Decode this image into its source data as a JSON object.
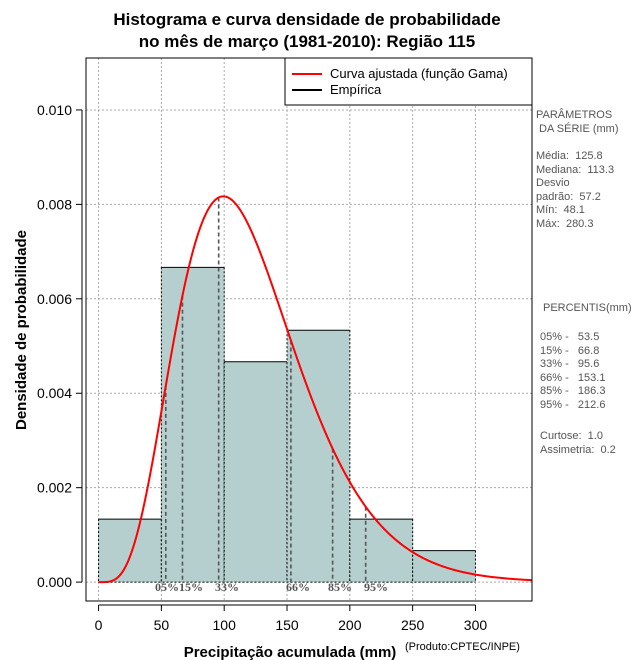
{
  "chart_data": {
    "type": "histogram",
    "title_line1": "Histograma e curva densidade de probabilidade",
    "title_line2": "no mês de março (1981-2010): Região 115",
    "xlabel": "Precipitação acumulada (mm)",
    "ylabel": "Densidade de probabilidade",
    "xlim": [
      -10,
      345
    ],
    "ylim": [
      -0.0004,
      0.0111
    ],
    "x_ticks": [
      0,
      50,
      100,
      150,
      200,
      250,
      300
    ],
    "y_ticks": [
      0.0,
      0.002,
      0.004,
      0.006,
      0.008,
      0.01
    ],
    "y_tick_labels": [
      "0.000",
      "0.002",
      "0.004",
      "0.006",
      "0.008",
      "0.010"
    ],
    "bins": [
      {
        "x0": 0,
        "x1": 50,
        "density": 0.001333
      },
      {
        "x0": 50,
        "x1": 100,
        "density": 0.006667
      },
      {
        "x0": 100,
        "x1": 150,
        "density": 0.004667
      },
      {
        "x0": 150,
        "x1": 200,
        "density": 0.005333
      },
      {
        "x0": 200,
        "x1": 250,
        "density": 0.001333
      },
      {
        "x0": 250,
        "x1": 300,
        "density": 0.000667
      }
    ],
    "curve": {
      "name": "Curva ajustada (função Gama)",
      "dist": "gamma",
      "shape": 5.3,
      "rate": 0.0433,
      "color": "#ff0000"
    },
    "percentile_lines": [
      {
        "label": "05%",
        "x": 53.5
      },
      {
        "label": "15%",
        "x": 66.8
      },
      {
        "label": "33%",
        "x": 95.6
      },
      {
        "label": "66%",
        "x": 153.1
      },
      {
        "label": "85%",
        "x": 186.3
      },
      {
        "label": "95%",
        "x": 212.6
      }
    ],
    "legend": [
      {
        "label": "Curva ajustada (função Gama)",
        "color": "#ff0000"
      },
      {
        "label": "Empírica",
        "color": "#000000"
      }
    ],
    "bar_color": "#b5cfcf",
    "grid": true
  },
  "side_panel": {
    "params_title": "PARÂMETROS\n DA SÉRIE (mm)",
    "params": "Média:  125.8\nMediana:  113.3\nDesvio\npadrão:  57.2\nMín:  48.1\nMáx:  280.3",
    "percentis_title": "PERCENTIS(mm)",
    "percentis": "05% -   53.5\n15% -   66.8\n33% -   95.6\n66% -   153.1\n85% -   186.3\n95% -   212.6",
    "stats": "Curtose:  1.0\nAssimetria:  0.2"
  },
  "credit": "(Produto:CPTEC/INPE)"
}
